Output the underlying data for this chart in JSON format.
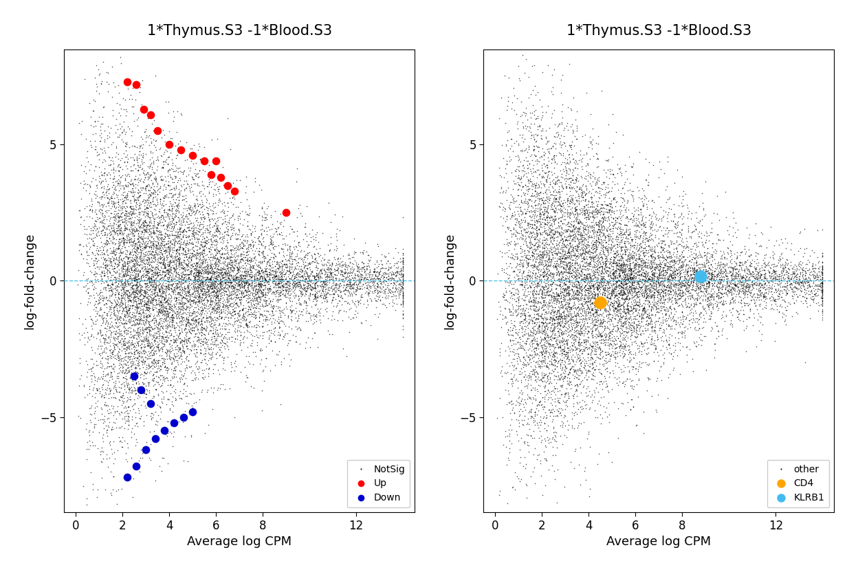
{
  "title": "1*Thymus.S3 -1*Blood.S3",
  "xlabel": "Average log CPM",
  "ylabel": "log-fold-change",
  "xlim": [
    -0.5,
    14.5
  ],
  "ylim": [
    -8.5,
    8.5
  ],
  "xticks": [
    0,
    2,
    4,
    6,
    8,
    12
  ],
  "yticks": [
    -5,
    0,
    5
  ],
  "background_color": "#ffffff",
  "hline_color": "#4dc4e8",
  "bg_dot_color": "#000000",
  "up_color": "#ff0000",
  "down_color": "#0000cc",
  "orange_color": "#FFA500",
  "cyan_color": "#44BBEE",
  "seed": 42,
  "n_background": 12000,
  "up_points": [
    [
      2.2,
      7.3
    ],
    [
      2.6,
      7.2
    ],
    [
      2.9,
      6.3
    ],
    [
      3.2,
      6.1
    ],
    [
      3.5,
      5.5
    ],
    [
      4.0,
      5.0
    ],
    [
      4.5,
      4.8
    ],
    [
      5.0,
      4.6
    ],
    [
      5.5,
      4.4
    ],
    [
      5.8,
      3.9
    ],
    [
      6.0,
      4.4
    ],
    [
      6.2,
      3.8
    ],
    [
      6.5,
      3.5
    ],
    [
      6.8,
      3.3
    ],
    [
      9.0,
      2.5
    ]
  ],
  "down_points": [
    [
      2.2,
      -7.2
    ],
    [
      2.6,
      -6.8
    ],
    [
      3.0,
      -6.2
    ],
    [
      3.4,
      -5.8
    ],
    [
      3.8,
      -5.5
    ],
    [
      4.2,
      -5.2
    ],
    [
      4.6,
      -5.0
    ],
    [
      5.0,
      -4.8
    ],
    [
      3.2,
      -4.5
    ],
    [
      2.8,
      -4.0
    ],
    [
      2.5,
      -3.5
    ]
  ],
  "cd4_point": [
    4.5,
    -0.8
  ],
  "klrb1_point": [
    8.8,
    0.15
  ]
}
